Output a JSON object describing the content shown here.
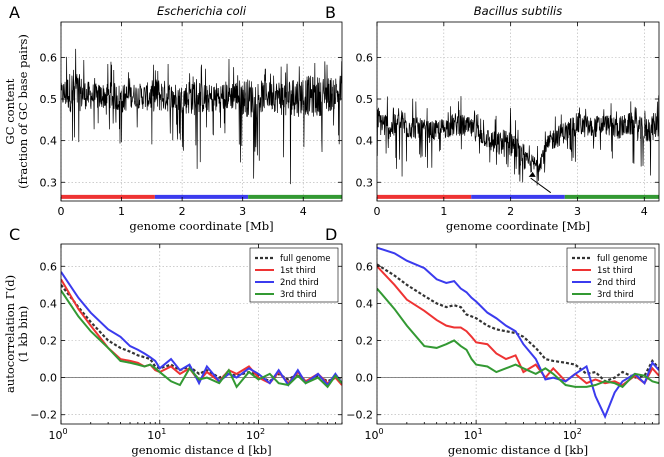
{
  "chart_data": [
    {
      "panel": "A",
      "type": "line",
      "title": "Escherichia coli",
      "xlabel": "genome coordinate [Mb]",
      "ylabel": "GC content",
      "ylabel2": "(fraction of GC base pairs)",
      "xlim": [
        0,
        4.64
      ],
      "ylim": [
        0.255,
        0.685
      ],
      "xticks": [
        0,
        1,
        2,
        3,
        4
      ],
      "yticks": [
        0.3,
        0.4,
        0.5,
        0.6
      ],
      "series": [
        {
          "values_envelope": {
            "x": [
              0,
              0.2,
              0.4,
              0.6,
              0.8,
              1.0,
              1.2,
              1.4,
              1.6,
              1.8,
              2.0,
              2.2,
              2.4,
              2.6,
              2.8,
              3.0,
              3.2,
              3.4,
              3.6,
              3.8,
              4.0,
              4.2,
              4.4,
              4.6
            ],
            "mean": [
              0.51,
              0.52,
              0.51,
              0.505,
              0.51,
              0.5,
              0.51,
              0.505,
              0.51,
              0.505,
              0.5,
              0.51,
              0.5,
              0.505,
              0.51,
              0.505,
              0.5,
              0.51,
              0.505,
              0.5,
              0.51,
              0.505,
              0.51,
              0.52
            ],
            "min": [
              0.44,
              0.35,
              0.4,
              0.41,
              0.42,
              0.38,
              0.42,
              0.4,
              0.34,
              0.39,
              0.38,
              0.3,
              0.39,
              0.37,
              0.4,
              0.33,
              0.3,
              0.4,
              0.36,
              0.29,
              0.31,
              0.3,
              0.35,
              0.37
            ],
            "max": [
              0.6,
              0.67,
              0.6,
              0.59,
              0.6,
              0.59,
              0.58,
              0.59,
              0.58,
              0.6,
              0.58,
              0.59,
              0.58,
              0.59,
              0.6,
              0.58,
              0.59,
              0.58,
              0.6,
              0.59,
              0.58,
              0.59,
              0.6,
              0.6
            ]
          }
        }
      ],
      "replication_bar": [
        {
          "from": 0,
          "to": 1.55,
          "color": "#ee3333"
        },
        {
          "from": 1.55,
          "to": 3.09,
          "color": "#3b3bee"
        },
        {
          "from": 3.09,
          "to": 4.64,
          "color": "#339933"
        }
      ],
      "replication_bar_y": 0.265
    },
    {
      "panel": "B",
      "type": "line",
      "title": "Bacillus subtilis",
      "xlabel": "genome coordinate [Mb]",
      "xlim": [
        0,
        4.22
      ],
      "ylim": [
        0.255,
        0.685
      ],
      "xticks": [
        0,
        1,
        2,
        3,
        4
      ],
      "yticks": [
        0.3,
        0.4,
        0.5,
        0.6
      ],
      "series": [
        {
          "values_envelope": {
            "x": [
              0,
              0.2,
              0.4,
              0.6,
              0.8,
              1.0,
              1.2,
              1.4,
              1.6,
              1.8,
              2.0,
              2.2,
              2.4,
              2.6,
              2.8,
              3.0,
              3.2,
              3.4,
              3.6,
              3.8,
              4.0,
              4.2
            ],
            "mean": [
              0.45,
              0.43,
              0.44,
              0.43,
              0.42,
              0.43,
              0.44,
              0.43,
              0.41,
              0.39,
              0.4,
              0.35,
              0.34,
              0.4,
              0.42,
              0.44,
              0.43,
              0.44,
              0.43,
              0.44,
              0.42,
              0.44
            ],
            "min": [
              0.36,
              0.34,
              0.3,
              0.35,
              0.33,
              0.35,
              0.34,
              0.36,
              0.32,
              0.3,
              0.32,
              0.28,
              0.29,
              0.32,
              0.34,
              0.35,
              0.33,
              0.36,
              0.33,
              0.34,
              0.29,
              0.34
            ],
            "max": [
              0.57,
              0.5,
              0.52,
              0.5,
              0.48,
              0.49,
              0.51,
              0.5,
              0.46,
              0.47,
              0.55,
              0.42,
              0.42,
              0.47,
              0.49,
              0.51,
              0.49,
              0.5,
              0.49,
              0.5,
              0.48,
              0.53
            ]
          }
        }
      ],
      "replication_bar": [
        {
          "from": 0,
          "to": 1.41,
          "color": "#ee3333"
        },
        {
          "from": 1.41,
          "to": 2.81,
          "color": "#3b3bee"
        },
        {
          "from": 2.81,
          "to": 4.22,
          "color": "#339933"
        }
      ],
      "replication_bar_y": 0.265
    },
    {
      "panel": "C",
      "type": "line",
      "xscale": "log",
      "xlabel": "genomic distance d [kb]",
      "ylabel": "autocorrelation Γ(d)",
      "ylabel2": "(1 kb bin)",
      "xlim": [
        1,
        700
      ],
      "ylim": [
        -0.25,
        0.72
      ],
      "xticks": [
        1,
        10,
        100
      ],
      "xtick_labels": [
        "10^0",
        "10^1",
        "10^2"
      ],
      "yticks": [
        -0.2,
        0.0,
        0.2,
        0.4,
        0.6
      ],
      "legend": "top-right",
      "series": [
        {
          "name": "full genome",
          "color": "#333333",
          "dashed": true,
          "x": [
            1,
            1.5,
            2,
            3,
            4,
            5,
            6,
            7,
            8,
            9,
            10,
            13,
            16,
            20,
            25,
            30,
            40,
            50,
            60,
            80,
            100,
            130,
            160,
            200,
            250,
            300,
            400,
            500,
            600,
            700
          ],
          "y": [
            0.5,
            0.38,
            0.3,
            0.2,
            0.16,
            0.14,
            0.12,
            0.11,
            0.1,
            0.06,
            0.05,
            0.07,
            0.04,
            0.06,
            0.02,
            0.04,
            0.0,
            0.02,
            0.01,
            0.03,
            0.01,
            -0.02,
            0.02,
            -0.01,
            0.02,
            -0.02,
            0.01,
            -0.02,
            0.0,
            -0.01
          ]
        },
        {
          "name": "1st third",
          "color": "#ee3333",
          "x": [
            1,
            1.5,
            2,
            3,
            4,
            5,
            6,
            7,
            8,
            9,
            10,
            13,
            16,
            20,
            25,
            30,
            40,
            50,
            60,
            80,
            100,
            130,
            160,
            200,
            250,
            300,
            400,
            500,
            600,
            700
          ],
          "y": [
            0.53,
            0.37,
            0.28,
            0.16,
            0.1,
            0.09,
            0.08,
            0.06,
            0.07,
            0.04,
            0.03,
            0.06,
            0.02,
            0.05,
            -0.02,
            0.03,
            -0.02,
            0.04,
            0.02,
            0.06,
            0.0,
            -0.03,
            0.03,
            -0.03,
            0.03,
            -0.02,
            0.02,
            -0.03,
            0.0,
            -0.04
          ]
        },
        {
          "name": "2nd third",
          "color": "#3b3bee",
          "x": [
            1,
            1.5,
            2,
            3,
            4,
            5,
            6,
            7,
            8,
            9,
            10,
            13,
            16,
            20,
            25,
            30,
            40,
            50,
            60,
            80,
            100,
            130,
            160,
            200,
            250,
            300,
            400,
            500,
            600,
            700
          ],
          "y": [
            0.57,
            0.43,
            0.35,
            0.26,
            0.22,
            0.17,
            0.15,
            0.13,
            0.11,
            0.09,
            0.05,
            0.1,
            0.04,
            0.07,
            -0.03,
            0.06,
            -0.02,
            0.02,
            0.0,
            0.05,
            0.02,
            -0.03,
            0.04,
            -0.04,
            0.04,
            -0.03,
            0.02,
            -0.04,
            0.02,
            -0.03
          ]
        },
        {
          "name": "3rd third",
          "color": "#339933",
          "x": [
            1,
            1.5,
            2,
            3,
            4,
            5,
            6,
            7,
            8,
            9,
            10,
            13,
            16,
            20,
            25,
            30,
            40,
            50,
            60,
            80,
            100,
            130,
            160,
            200,
            250,
            300,
            400,
            500,
            600,
            700
          ],
          "y": [
            0.47,
            0.33,
            0.25,
            0.16,
            0.09,
            0.08,
            0.07,
            0.06,
            0.07,
            0.05,
            0.03,
            -0.02,
            -0.04,
            0.05,
            -0.01,
            0.0,
            -0.03,
            0.04,
            -0.05,
            0.03,
            -0.01,
            0.02,
            -0.03,
            -0.04,
            0.01,
            -0.03,
            0.0,
            -0.05,
            0.01,
            -0.03
          ]
        }
      ]
    },
    {
      "panel": "D",
      "type": "line",
      "xscale": "log",
      "xlabel": "genomic distance d [kb]",
      "xlim": [
        1,
        700
      ],
      "ylim": [
        -0.25,
        0.72
      ],
      "xticks": [
        1,
        10,
        100
      ],
      "xtick_labels": [
        "10^0",
        "10^1",
        "10^2"
      ],
      "yticks": [
        -0.2,
        0.0,
        0.2,
        0.4,
        0.6
      ],
      "legend": "top-right",
      "series": [
        {
          "name": "full genome",
          "color": "#333333",
          "dashed": true,
          "x": [
            1,
            1.5,
            2,
            3,
            4,
            5,
            6,
            7,
            8,
            9,
            10,
            13,
            16,
            20,
            25,
            30,
            40,
            50,
            60,
            80,
            100,
            130,
            160,
            200,
            250,
            300,
            400,
            500,
            600,
            700
          ],
          "y": [
            0.61,
            0.55,
            0.5,
            0.44,
            0.4,
            0.38,
            0.39,
            0.38,
            0.34,
            0.33,
            0.32,
            0.28,
            0.26,
            0.25,
            0.24,
            0.22,
            0.16,
            0.1,
            0.09,
            0.08,
            0.07,
            0.02,
            0.03,
            -0.02,
            0.0,
            0.03,
            0.0,
            0.01,
            0.09,
            0.05
          ]
        },
        {
          "name": "1st third",
          "color": "#ee3333",
          "x": [
            1,
            1.5,
            2,
            3,
            4,
            5,
            6,
            7,
            8,
            9,
            10,
            13,
            16,
            20,
            25,
            30,
            40,
            50,
            60,
            80,
            100,
            130,
            160,
            200,
            250,
            300,
            400,
            500,
            600,
            700
          ],
          "y": [
            0.6,
            0.5,
            0.42,
            0.36,
            0.31,
            0.28,
            0.27,
            0.27,
            0.25,
            0.22,
            0.19,
            0.18,
            0.13,
            0.1,
            0.12,
            0.03,
            0.07,
            0.0,
            0.05,
            -0.02,
            0.02,
            -0.03,
            -0.01,
            -0.03,
            -0.02,
            -0.04,
            0.01,
            -0.03,
            0.05,
            0.01
          ]
        },
        {
          "name": "2nd third",
          "color": "#3b3bee",
          "x": [
            1,
            1.5,
            2,
            3,
            4,
            5,
            6,
            7,
            8,
            9,
            10,
            13,
            16,
            20,
            25,
            30,
            40,
            50,
            60,
            80,
            100,
            130,
            160,
            200,
            250,
            300,
            400,
            500,
            600,
            700
          ],
          "y": [
            0.7,
            0.67,
            0.63,
            0.59,
            0.53,
            0.51,
            0.52,
            0.48,
            0.46,
            0.43,
            0.41,
            0.35,
            0.32,
            0.28,
            0.25,
            0.18,
            0.1,
            -0.01,
            0.0,
            -0.02,
            0.02,
            0.06,
            -0.1,
            -0.21,
            -0.08,
            -0.02,
            0.02,
            -0.03,
            0.08,
            0.04
          ]
        },
        {
          "name": "3rd third",
          "color": "#339933",
          "x": [
            1,
            1.5,
            2,
            3,
            4,
            5,
            6,
            7,
            8,
            9,
            10,
            13,
            16,
            20,
            25,
            30,
            40,
            50,
            60,
            80,
            100,
            130,
            160,
            200,
            250,
            300,
            400,
            500,
            600,
            700
          ],
          "y": [
            0.48,
            0.37,
            0.28,
            0.17,
            0.16,
            0.18,
            0.2,
            0.17,
            0.15,
            0.1,
            0.07,
            0.06,
            0.03,
            0.05,
            0.07,
            0.05,
            0.02,
            0.05,
            0.02,
            -0.04,
            -0.05,
            -0.05,
            -0.04,
            -0.02,
            -0.03,
            -0.05,
            0.02,
            0.01,
            -0.02,
            -0.03
          ]
        }
      ]
    }
  ]
}
